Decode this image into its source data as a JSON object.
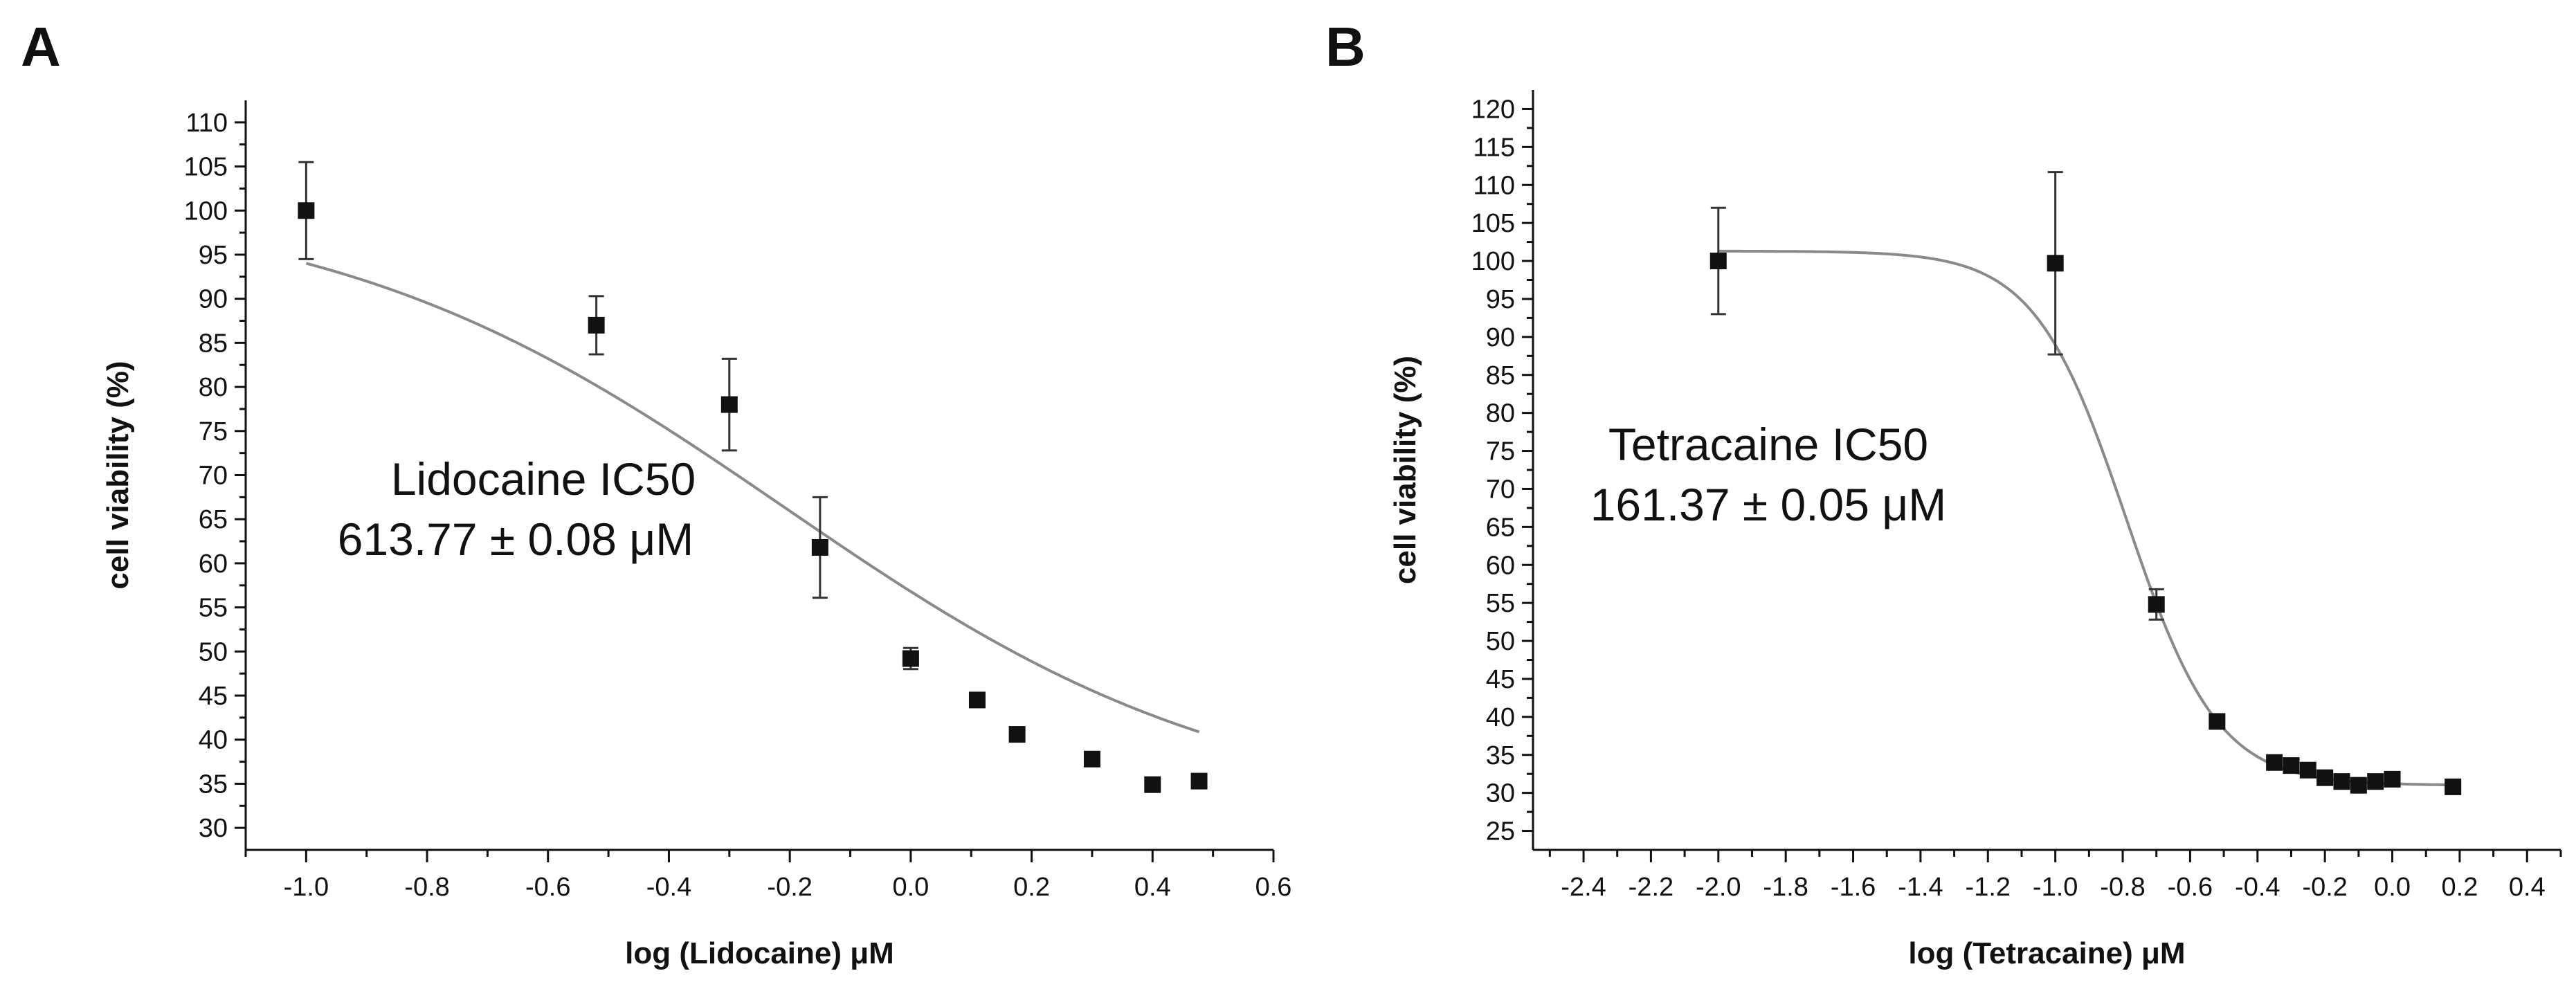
{
  "colors": {
    "axis": "#111111",
    "curve": "#8a8a8a",
    "marker": "#111111"
  },
  "chart_data": [
    {
      "type": "scatter",
      "panel": "A",
      "xlabel": "log (Lidocaine) μM",
      "ylabel": "cell viability (%)",
      "annotation": [
        "Lidocaine IC50",
        "613.77 ± 0.08 μM"
      ],
      "xlim": [
        -1.1,
        0.6
      ],
      "ylim": [
        27.5,
        112.5
      ],
      "xticks": [
        -1.0,
        -0.8,
        -0.6,
        -0.4,
        -0.2,
        0.0,
        0.2,
        0.4,
        0.6
      ],
      "xtick_labels": [
        "-1.0",
        "-0.8",
        "-0.6",
        "-0.4",
        "-0.2",
        "0.0",
        "0.2",
        "0.4",
        "0.6"
      ],
      "yticks": [
        30,
        35,
        40,
        45,
        50,
        55,
        60,
        65,
        70,
        75,
        80,
        85,
        90,
        95,
        100,
        105,
        110
      ],
      "ytick_labels": [
        "30",
        "35",
        "40",
        "45",
        "50",
        "55",
        "60",
        "65",
        "70",
        "75",
        "80",
        "85",
        "90",
        "95",
        "100",
        "105",
        "110"
      ],
      "points": [
        {
          "x": -1.0,
          "y": 100.0,
          "err": 5.5
        },
        {
          "x": -0.52,
          "y": 87.0,
          "err": 3.3
        },
        {
          "x": -0.3,
          "y": 78.0,
          "err": 5.2
        },
        {
          "x": -0.15,
          "y": 61.8,
          "err": 5.7
        },
        {
          "x": 0.0,
          "y": 49.2,
          "err": 1.2
        },
        {
          "x": 0.11,
          "y": 44.5,
          "err": 0.8
        },
        {
          "x": 0.176,
          "y": 40.6,
          "err": 0.8
        },
        {
          "x": 0.3,
          "y": 37.8,
          "err": 0.6
        },
        {
          "x": 0.4,
          "y": 34.9,
          "err": 0.5
        },
        {
          "x": 0.477,
          "y": 35.3,
          "err": 0.6
        }
      ],
      "fit": {
        "model": "logistic",
        "bottom": 31,
        "top": 101.8,
        "logIC50": -0.21,
        "hill": 1.15,
        "x_range": [
          -1.0,
          0.477
        ]
      }
    },
    {
      "type": "scatter",
      "panel": "B",
      "xlabel": "log (Tetracaine) μM",
      "ylabel": "cell viability (%)",
      "annotation": [
        "Tetracaine IC50",
        "161.37 ± 0.05 μM"
      ],
      "xlim": [
        -2.55,
        0.5
      ],
      "ylim": [
        22.5,
        122.5
      ],
      "xticks": [
        -2.4,
        -2.2,
        -2.0,
        -1.8,
        -1.6,
        -1.4,
        -1.2,
        -1.0,
        -0.8,
        -0.6,
        -0.4,
        -0.2,
        0.0,
        0.2,
        0.4
      ],
      "xtick_labels": [
        "-2.4",
        "-2.2",
        "-2.0",
        "-1.8",
        "-1.6",
        "-1.4",
        "-1.2",
        "-1.0",
        "-0.8",
        "-0.6",
        "-0.4",
        "-0.2",
        "0.0",
        "0.2",
        "0.4"
      ],
      "yticks": [
        25,
        30,
        35,
        40,
        45,
        50,
        55,
        60,
        65,
        70,
        75,
        80,
        85,
        90,
        95,
        100,
        105,
        110,
        115,
        120
      ],
      "ytick_labels": [
        "25",
        "30",
        "35",
        "40",
        "45",
        "50",
        "55",
        "60",
        "65",
        "70",
        "75",
        "80",
        "85",
        "90",
        "95",
        "100",
        "105",
        "110",
        "115",
        "120"
      ],
      "points": [
        {
          "x": -2.0,
          "y": 100.0,
          "err": 7.0
        },
        {
          "x": -1.0,
          "y": 99.7,
          "err": 12.0
        },
        {
          "x": -0.7,
          "y": 54.8,
          "err": 2.0
        },
        {
          "x": -0.52,
          "y": 39.4,
          "err": 0.7
        },
        {
          "x": -0.35,
          "y": 34.0,
          "err": 0.6
        },
        {
          "x": -0.3,
          "y": 33.6,
          "err": 0.5
        },
        {
          "x": -0.25,
          "y": 33.0,
          "err": 0.5
        },
        {
          "x": -0.2,
          "y": 32.0,
          "err": 0.5
        },
        {
          "x": -0.15,
          "y": 31.5,
          "err": 0.5
        },
        {
          "x": -0.1,
          "y": 31.0,
          "err": 0.5
        },
        {
          "x": -0.05,
          "y": 31.5,
          "err": 0.5
        },
        {
          "x": 0.0,
          "y": 31.8,
          "err": 0.5
        },
        {
          "x": 0.18,
          "y": 30.8,
          "err": 0.4
        }
      ],
      "fit": {
        "model": "logistic",
        "bottom": 31,
        "top": 101.3,
        "logIC50": -0.79,
        "hill": 3.2,
        "x_range": [
          -2.0,
          0.18
        ]
      }
    }
  ]
}
